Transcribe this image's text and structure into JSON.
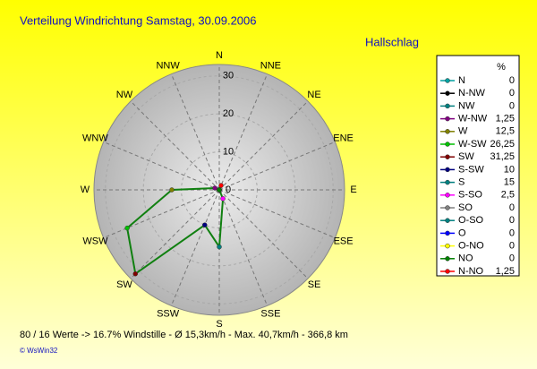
{
  "chart_data": {
    "type": "windrose",
    "title": "Verteilung Windrichtung    Samstag, 30.09.2006",
    "subtitle": "Hallschlag",
    "axis_labels": [
      "N",
      "NNE",
      "NE",
      "ENE",
      "E",
      "ESE",
      "SE",
      "SSE",
      "S",
      "SSW",
      "SW",
      "WSW",
      "W",
      "WNW",
      "NW",
      "NNW"
    ],
    "legend_header": "%",
    "categories": [
      "N",
      "N-NW",
      "NW",
      "W-NW",
      "W",
      "W-SW",
      "SW",
      "S-SW",
      "S",
      "S-SO",
      "SO",
      "O-SO",
      "O",
      "O-NO",
      "NO",
      "N-NO"
    ],
    "values": [
      0,
      0,
      0,
      1.25,
      12.5,
      26.25,
      31.25,
      10,
      15,
      2.5,
      0,
      0,
      0,
      0,
      0,
      1.25
    ],
    "value_labels": [
      "0",
      "0",
      "0",
      "1,25",
      "12,5",
      "26,25",
      "31,25",
      "10",
      "15",
      "2,5",
      "0",
      "0",
      "0",
      "0",
      "0",
      "1,25"
    ],
    "marker_colors": [
      "#00a0a0",
      "#000000",
      "#008080",
      "#800080",
      "#808000",
      "#00c000",
      "#800000",
      "#000080",
      "#008080",
      "#ff00ff",
      "#808080",
      "#008080",
      "#0000ff",
      "#ffff00",
      "#008000",
      "#ff0000"
    ],
    "color": "#108010",
    "rlim": [
      0,
      33
    ],
    "rticks": [
      0,
      10,
      20,
      30
    ],
    "footer": "80 / 16 Werte  -> 16.7% Windstille   -   Ø 15,3km/h  -  Max. 40,7km/h   -   366,8 km",
    "credit": "© WsWin32"
  }
}
